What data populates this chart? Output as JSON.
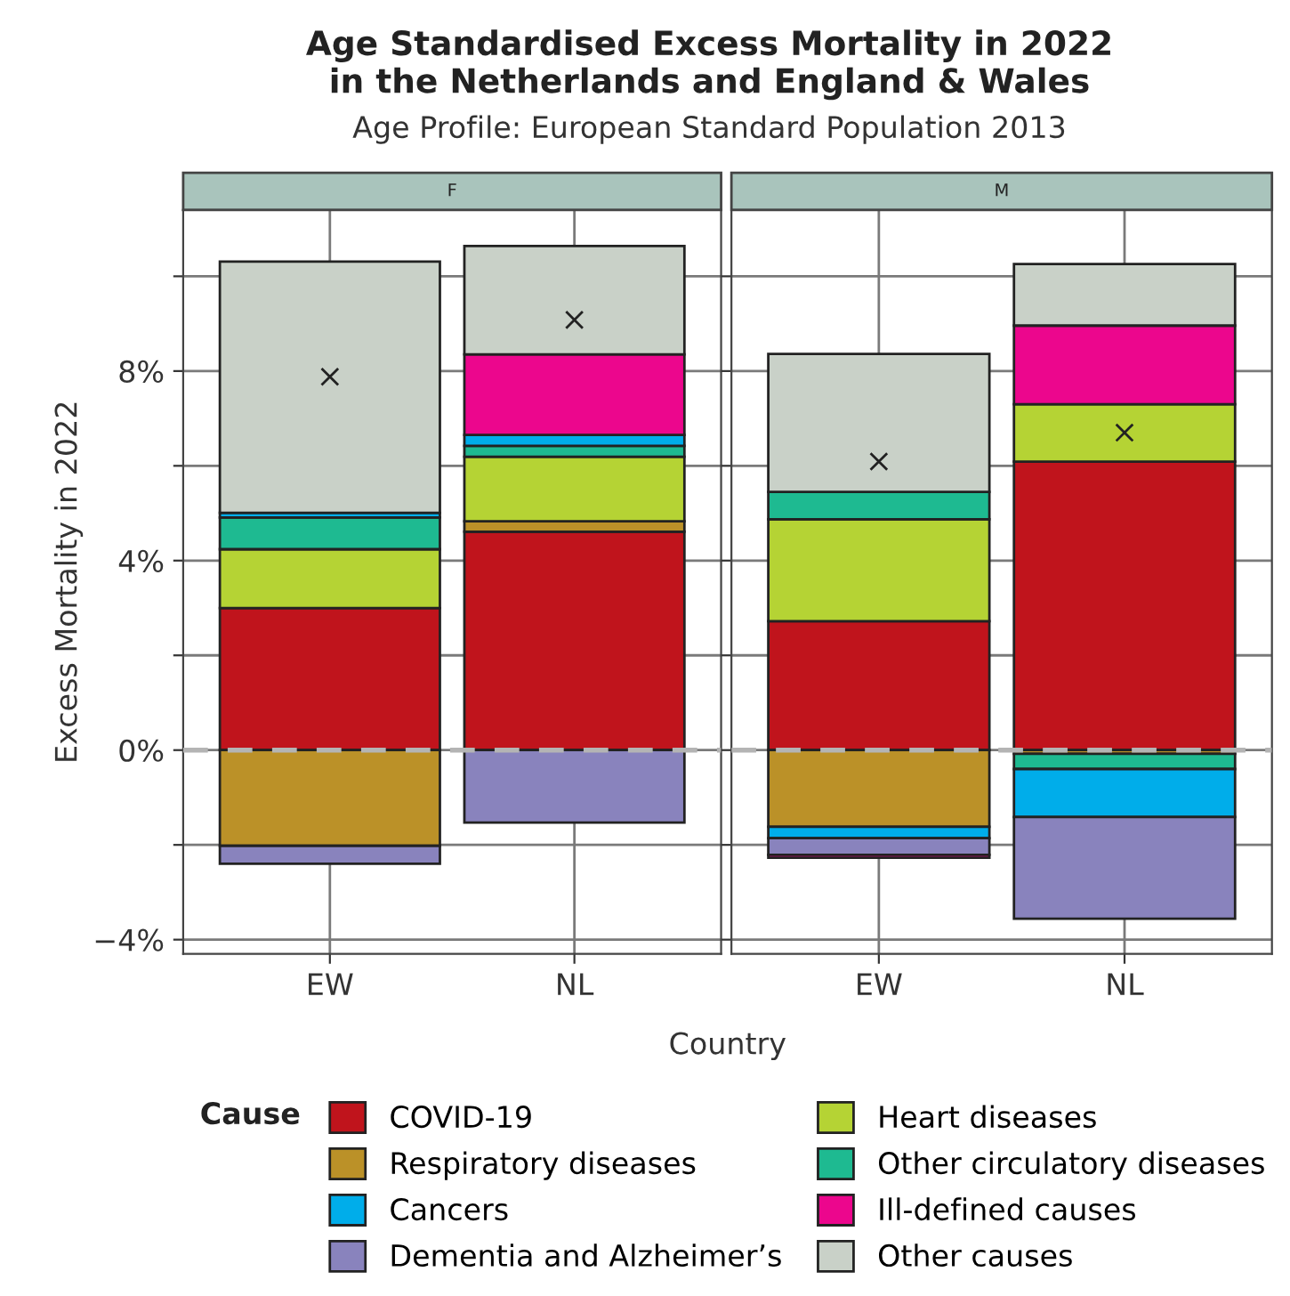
{
  "chart_data": [
    {
      "type": "bar",
      "stacked": true,
      "title": "F",
      "annotations": [
        "Age Standardised Excess Mortality in 2022\nin the Netherlands and England & Wales",
        "Age Profile: European Standard Population 2013"
      ],
      "xlabel": "Country",
      "ylabel": "Excess Mortality in 2022",
      "legend_title": "Cause",
      "legend": "bottom",
      "categories": [
        "EW",
        "NL"
      ],
      "ylim": [
        -4.3,
        11.4
      ],
      "yticks": [
        {
          "value": -4,
          "label": "−4%"
        },
        {
          "value": -2,
          "label": null
        },
        {
          "value": 0,
          "label": "0%"
        },
        {
          "value": 2,
          "label": null
        },
        {
          "value": 4,
          "label": "4%"
        },
        {
          "value": 6,
          "label": null
        },
        {
          "value": 8,
          "label": "8%"
        },
        {
          "value": 10,
          "label": null
        }
      ],
      "grid": true,
      "ref_lines": [
        {
          "axis": "y",
          "value": 0,
          "color": "#b4b4b4",
          "line_style": "dashed"
        }
      ],
      "series": [
        {
          "name": "COVID-19",
          "color": "#c0141c",
          "values": [
            3.0,
            4.61
          ]
        },
        {
          "name": "Respiratory diseases",
          "color": "#bb9128",
          "values": [
            -2.02,
            0.22
          ]
        },
        {
          "name": "Heart diseases",
          "color": "#b5d334",
          "values": [
            1.24,
            1.36
          ]
        },
        {
          "name": "Other circulatory diseases",
          "color": "#1eba91",
          "values": [
            0.67,
            0.23
          ]
        },
        {
          "name": "Cancers",
          "color": "#00adea",
          "values": [
            0.1,
            0.23
          ]
        },
        {
          "name": "Dementia and Alzheimer’s",
          "color": "#8983bd",
          "values": [
            -0.38,
            -1.53
          ]
        },
        {
          "name": "Ill-defined causes",
          "color": "#ec068d",
          "values": [
            null,
            1.7
          ]
        },
        {
          "name": "Other causes",
          "color": "#c9d1c8",
          "values": [
            5.3,
            2.29
          ]
        },
        {
          "type": "scatter",
          "color": "#222222",
          "marker": "cross",
          "x": [
            "EW",
            "NL"
          ],
          "values": [
            7.88,
            9.08
          ]
        }
      ]
    },
    {
      "type": "bar",
      "stacked": true,
      "title": "M",
      "tick_labels": "x",
      "categories": [
        "EW",
        "NL"
      ],
      "ylim": [
        -4.3,
        11.4
      ],
      "yticks": [
        {
          "value": -4,
          "label": null
        },
        {
          "value": -2,
          "label": null
        },
        {
          "value": 0,
          "label": null
        },
        {
          "value": 2,
          "label": null
        },
        {
          "value": 4,
          "label": null
        },
        {
          "value": 6,
          "label": null
        },
        {
          "value": 8,
          "label": null
        },
        {
          "value": 10,
          "label": null
        }
      ],
      "grid": true,
      "ref_lines": [
        {
          "axis": "y",
          "value": 0,
          "color": "#b4b4b4",
          "line_style": "dashed"
        }
      ],
      "series": [
        {
          "color": "#c0141c",
          "values": [
            2.72,
            6.09
          ]
        },
        {
          "color": "#bb9128",
          "values": [
            -1.62,
            -0.08
          ]
        },
        {
          "color": "#b5d334",
          "values": [
            2.15,
            1.21
          ]
        },
        {
          "color": "#1eba91",
          "values": [
            0.58,
            -0.32
          ]
        },
        {
          "color": "#00adea",
          "values": [
            -0.24,
            -1.01
          ]
        },
        {
          "color": "#8983bd",
          "values": [
            -0.35,
            -2.15
          ]
        },
        {
          "color": "#ec068d",
          "values": [
            -0.06,
            1.66
          ]
        },
        {
          "color": "#c9d1c8",
          "values": [
            2.91,
            1.3
          ]
        },
        {
          "type": "scatter",
          "color": "#222222",
          "marker": "cross",
          "x": [
            "EW",
            "NL"
          ],
          "values": [
            6.09,
            6.7
          ]
        }
      ]
    }
  ]
}
